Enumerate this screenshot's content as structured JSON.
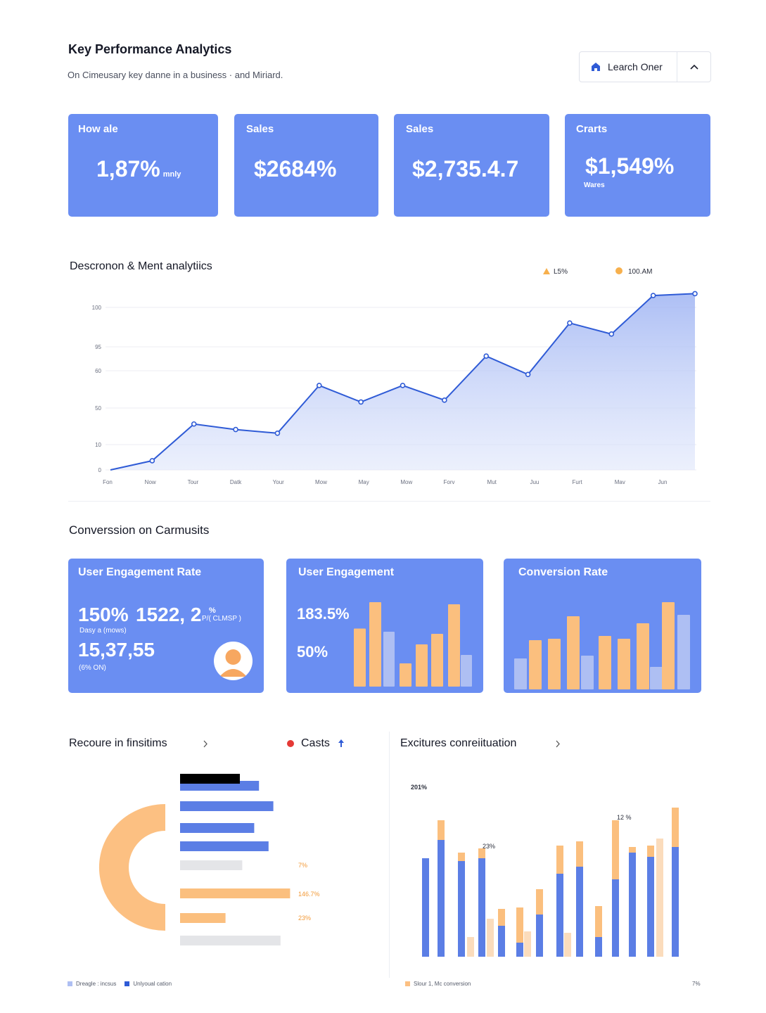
{
  "header": {
    "title": "Key Performance Analytics",
    "subtitle": "On Cimeusary key danne in a business · and Miriard.",
    "search_label": "Learch Oner"
  },
  "kpis": [
    {
      "label": "How ale",
      "value": "1,87%",
      "suffix": "mnly"
    },
    {
      "label": "Sales",
      "value": "$2684%"
    },
    {
      "label": "Sales",
      "value": "$2,735.4.7"
    },
    {
      "label": "Crarts",
      "value": "$1,549%",
      "note": "Wares"
    }
  ],
  "trend": {
    "title": "Descronon & Ment analytiics",
    "legend": [
      "L5%",
      "100.AM"
    ]
  },
  "conversion": {
    "title": "Converssion on Carmusits",
    "card1": {
      "label": "User Engagement Rate",
      "v1": "150%",
      "v2": "1522, 2",
      "v2_sup": "%",
      "v2_sub": "P/( CLMSP )",
      "caption1": "Dasy a (mows)",
      "v3": "15,37,55",
      "caption2": "(6% ON)"
    },
    "card2": {
      "label": "User Engagement",
      "v1": "183.5%",
      "v2": "50%"
    },
    "card3": {
      "label": "Conversion Rate"
    }
  },
  "resource": {
    "title": "Recoure in finsitims",
    "casts_label": "Casts",
    "hbar_labels": [
      "7%",
      "146.7%",
      "23%"
    ],
    "legend": [
      "Dreagle : incsus",
      "Unlyoual cation"
    ]
  },
  "excitures": {
    "title": "Excitures conreiituation",
    "annotations": [
      "201%",
      "23%",
      "12 %"
    ],
    "legend": "Slour 1,  Mc conversion",
    "right_note": "7%"
  },
  "colors": {
    "blue": "#5b7ee5",
    "card_blue": "#6a8ef2",
    "orange": "#fbbf7e",
    "light_blue": "#aebff3",
    "line_blue": "#2f5bd6",
    "red_dot": "#e53935"
  },
  "chart_data": [
    {
      "type": "area",
      "title": "Descronon & Ment analytiics",
      "y_tick_labels": [
        "0",
        "10",
        "50",
        "60",
        "95",
        "100"
      ],
      "x_tick_labels": [
        "Fon",
        "Now",
        "Tour",
        "Datk",
        "Your",
        "Mow",
        "May",
        "Mow",
        "Forv",
        "Mut",
        "Juu",
        "Furt",
        "Mav",
        "Jun"
      ],
      "series": [
        {
          "values": [
            0,
            5,
            25,
            22,
            20,
            46,
            37,
            46,
            38,
            62,
            52,
            80,
            74,
            95,
            96
          ]
        }
      ],
      "grid": true,
      "legend_position": "top-right"
    },
    {
      "type": "bar",
      "series": [
        {
          "name": "orange",
          "values": [
            55,
            80,
            22,
            40,
            50,
            78
          ]
        },
        {
          "name": "light",
          "values": [
            52,
            30
          ]
        }
      ]
    },
    {
      "type": "bar",
      "series": [
        {
          "values": [
            22,
            35,
            36,
            52,
            24,
            38,
            36,
            47,
            16,
            62,
            53
          ]
        }
      ]
    },
    {
      "type": "bar",
      "series": [
        {
          "values": [
            66,
            78,
            62,
            74,
            52,
            92,
            38,
            84,
            36,
            50
          ]
        }
      ]
    },
    {
      "type": "bar",
      "annotations": [
        "201%",
        "23%",
        "12 %"
      ],
      "series": [
        {
          "name": "blue",
          "values": [
            70,
            83,
            68,
            70,
            22,
            10,
            30,
            59,
            64,
            14,
            55,
            74,
            71,
            78
          ]
        },
        {
          "name": "orange",
          "values": [
            0,
            14,
            6,
            7,
            12,
            25,
            18,
            20,
            18,
            22,
            42,
            4,
            8,
            28
          ]
        },
        {
          "name": "pale",
          "values": [
            14,
            27,
            18,
            17
          ]
        }
      ]
    }
  ]
}
